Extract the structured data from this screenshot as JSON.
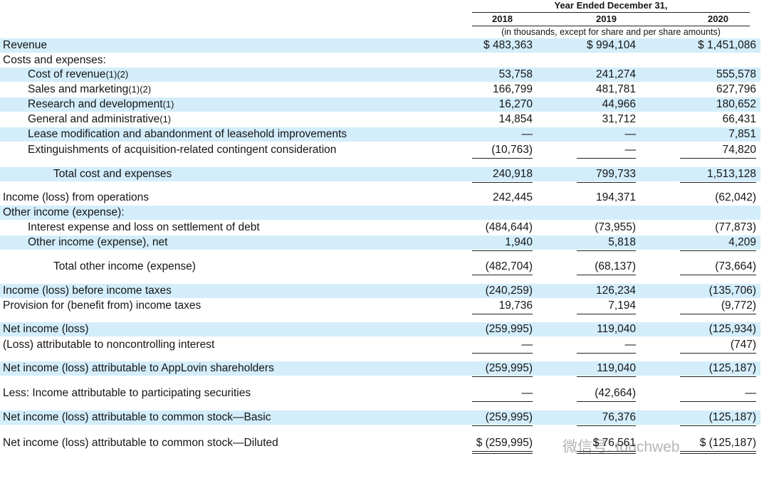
{
  "header": {
    "period": "Year Ended December 31,",
    "years": [
      "2018",
      "2019",
      "2020"
    ],
    "units": "(in thousands, except for share and per share amounts)"
  },
  "table": {
    "rows": [
      {
        "label": "Revenue",
        "values": [
          "$ 483,363",
          "$ 994,104",
          "$ 1,451,086"
        ]
      },
      {
        "label": "Costs and expenses:",
        "values": [
          "",
          "",
          ""
        ]
      },
      {
        "label": "Cost of revenue",
        "note": "(1)(2)",
        "values": [
          "53,758",
          "241,274",
          "555,578"
        ]
      },
      {
        "label": "Sales and marketing",
        "note": "(1)(2)",
        "values": [
          "166,799",
          "481,781",
          "627,796"
        ]
      },
      {
        "label": "Research and development",
        "note": "(1)",
        "values": [
          "16,270",
          "44,966",
          "180,652"
        ]
      },
      {
        "label": "General and administrative",
        "note": "(1)",
        "values": [
          "14,854",
          "31,712",
          "66,431"
        ]
      },
      {
        "label": "Lease modification and abandonment of leasehold improvements",
        "values": [
          "—",
          "—",
          "7,851"
        ]
      },
      {
        "label": "Extinguishments of acquisition-related contingent consideration",
        "values": [
          "(10,763)",
          "—",
          "74,820"
        ]
      },
      {
        "label": "Total cost and expenses",
        "values": [
          "240,918",
          "799,733",
          "1,513,128"
        ]
      },
      {
        "label": "Income (loss) from operations",
        "values": [
          "242,445",
          "194,371",
          "(62,042)"
        ]
      },
      {
        "label": "Other income (expense):",
        "values": [
          "",
          "",
          ""
        ]
      },
      {
        "label": "Interest expense and loss on settlement of debt",
        "values": [
          "(484,644)",
          "(73,955)",
          "(77,873)"
        ]
      },
      {
        "label": "Other income (expense), net",
        "values": [
          "1,940",
          "5,818",
          "4,209"
        ]
      },
      {
        "label": "Total other income (expense)",
        "values": [
          "(482,704)",
          "(68,137)",
          "(73,664)"
        ]
      },
      {
        "label": "Income (loss) before income taxes",
        "values": [
          "(240,259)",
          "126,234",
          "(135,706)"
        ]
      },
      {
        "label": "Provision for (benefit from) income taxes",
        "values": [
          "19,736",
          "7,194",
          "(9,772)"
        ]
      },
      {
        "label": "Net income (loss)",
        "values": [
          "(259,995)",
          "119,040",
          "(125,934)"
        ]
      },
      {
        "label": "(Loss) attributable to noncontrolling interest",
        "values": [
          "—",
          "—",
          "(747)"
        ]
      },
      {
        "label": "Net income (loss) attributable to AppLovin shareholders",
        "values": [
          "(259,995)",
          "119,040",
          "(125,187)"
        ]
      },
      {
        "label": "Less: Income attributable to participating securities",
        "values": [
          "—",
          "(42,664)",
          "—"
        ]
      },
      {
        "label": "Net income (loss) attributable to common stock—Basic",
        "values": [
          "(259,995)",
          "76,376",
          "(125,187)"
        ]
      },
      {
        "label": "Net income (loss) attributable to common stock—Diluted",
        "values": [
          "$ (259,995)",
          "$ 76,561",
          "$ (125,187)"
        ]
      }
    ]
  },
  "watermark": "微信号: touchweb"
}
